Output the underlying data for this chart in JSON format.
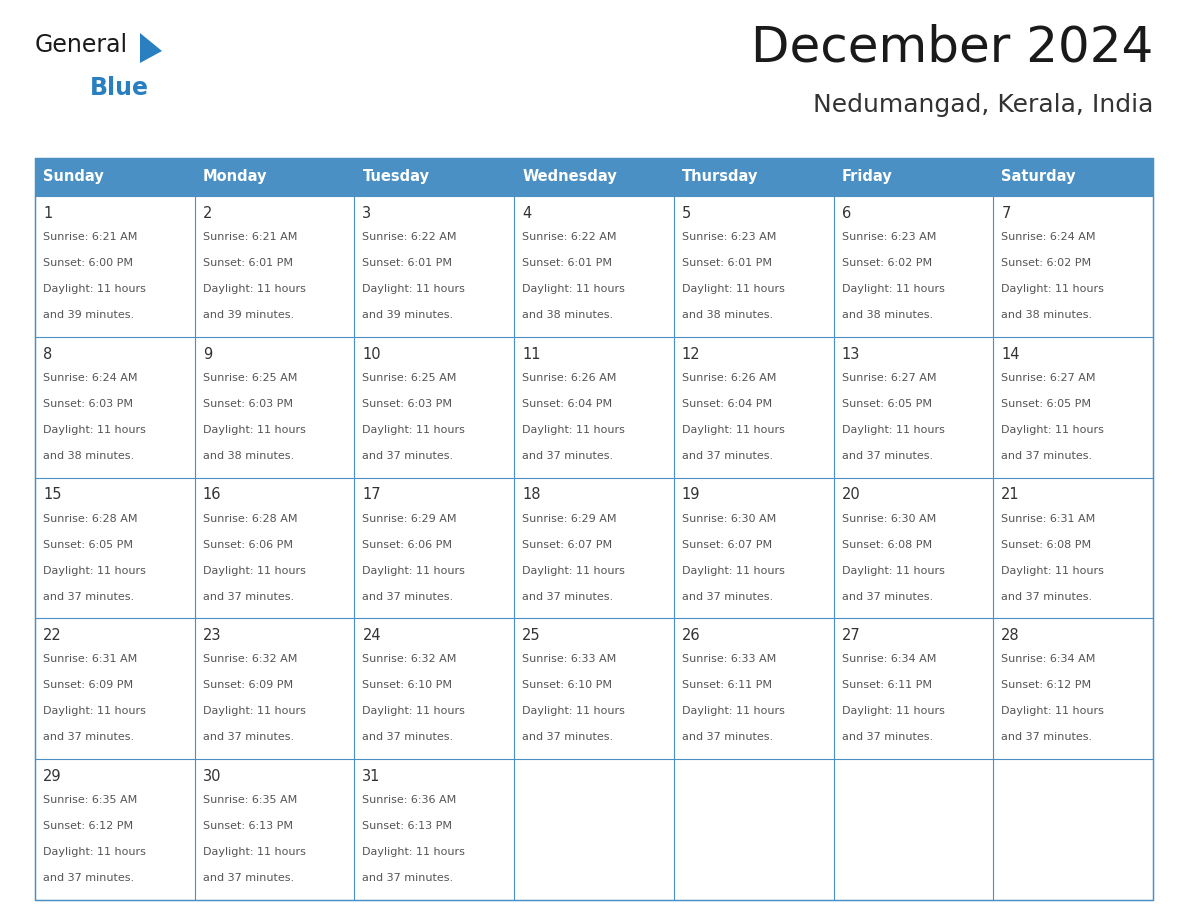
{
  "title": "December 2024",
  "subtitle": "Nedumangad, Kerala, India",
  "days_of_week": [
    "Sunday",
    "Monday",
    "Tuesday",
    "Wednesday",
    "Thursday",
    "Friday",
    "Saturday"
  ],
  "header_bg": "#4a90c4",
  "header_text": "#ffffff",
  "cell_bg": "#ffffff",
  "cell_border": "#4a90c4",
  "day_num_color": "#333333",
  "content_color": "#555555",
  "title_color": "#1a1a1a",
  "subtitle_color": "#333333",
  "logo_general_color": "#1a1a1a",
  "logo_blue_color": "#2a7fc1",
  "calendar_data": [
    {
      "day": 1,
      "col": 0,
      "row": 0,
      "sunrise": "6:21 AM",
      "sunset": "6:00 PM",
      "daylight_suffix": "39 minutes."
    },
    {
      "day": 2,
      "col": 1,
      "row": 0,
      "sunrise": "6:21 AM",
      "sunset": "6:01 PM",
      "daylight_suffix": "39 minutes."
    },
    {
      "day": 3,
      "col": 2,
      "row": 0,
      "sunrise": "6:22 AM",
      "sunset": "6:01 PM",
      "daylight_suffix": "39 minutes."
    },
    {
      "day": 4,
      "col": 3,
      "row": 0,
      "sunrise": "6:22 AM",
      "sunset": "6:01 PM",
      "daylight_suffix": "38 minutes."
    },
    {
      "day": 5,
      "col": 4,
      "row": 0,
      "sunrise": "6:23 AM",
      "sunset": "6:01 PM",
      "daylight_suffix": "38 minutes."
    },
    {
      "day": 6,
      "col": 5,
      "row": 0,
      "sunrise": "6:23 AM",
      "sunset": "6:02 PM",
      "daylight_suffix": "38 minutes."
    },
    {
      "day": 7,
      "col": 6,
      "row": 0,
      "sunrise": "6:24 AM",
      "sunset": "6:02 PM",
      "daylight_suffix": "38 minutes."
    },
    {
      "day": 8,
      "col": 0,
      "row": 1,
      "sunrise": "6:24 AM",
      "sunset": "6:03 PM",
      "daylight_suffix": "38 minutes."
    },
    {
      "day": 9,
      "col": 1,
      "row": 1,
      "sunrise": "6:25 AM",
      "sunset": "6:03 PM",
      "daylight_suffix": "38 minutes."
    },
    {
      "day": 10,
      "col": 2,
      "row": 1,
      "sunrise": "6:25 AM",
      "sunset": "6:03 PM",
      "daylight_suffix": "37 minutes."
    },
    {
      "day": 11,
      "col": 3,
      "row": 1,
      "sunrise": "6:26 AM",
      "sunset": "6:04 PM",
      "daylight_suffix": "37 minutes."
    },
    {
      "day": 12,
      "col": 4,
      "row": 1,
      "sunrise": "6:26 AM",
      "sunset": "6:04 PM",
      "daylight_suffix": "37 minutes."
    },
    {
      "day": 13,
      "col": 5,
      "row": 1,
      "sunrise": "6:27 AM",
      "sunset": "6:05 PM",
      "daylight_suffix": "37 minutes."
    },
    {
      "day": 14,
      "col": 6,
      "row": 1,
      "sunrise": "6:27 AM",
      "sunset": "6:05 PM",
      "daylight_suffix": "37 minutes."
    },
    {
      "day": 15,
      "col": 0,
      "row": 2,
      "sunrise": "6:28 AM",
      "sunset": "6:05 PM",
      "daylight_suffix": "37 minutes."
    },
    {
      "day": 16,
      "col": 1,
      "row": 2,
      "sunrise": "6:28 AM",
      "sunset": "6:06 PM",
      "daylight_suffix": "37 minutes."
    },
    {
      "day": 17,
      "col": 2,
      "row": 2,
      "sunrise": "6:29 AM",
      "sunset": "6:06 PM",
      "daylight_suffix": "37 minutes."
    },
    {
      "day": 18,
      "col": 3,
      "row": 2,
      "sunrise": "6:29 AM",
      "sunset": "6:07 PM",
      "daylight_suffix": "37 minutes."
    },
    {
      "day": 19,
      "col": 4,
      "row": 2,
      "sunrise": "6:30 AM",
      "sunset": "6:07 PM",
      "daylight_suffix": "37 minutes."
    },
    {
      "day": 20,
      "col": 5,
      "row": 2,
      "sunrise": "6:30 AM",
      "sunset": "6:08 PM",
      "daylight_suffix": "37 minutes."
    },
    {
      "day": 21,
      "col": 6,
      "row": 2,
      "sunrise": "6:31 AM",
      "sunset": "6:08 PM",
      "daylight_suffix": "37 minutes."
    },
    {
      "day": 22,
      "col": 0,
      "row": 3,
      "sunrise": "6:31 AM",
      "sunset": "6:09 PM",
      "daylight_suffix": "37 minutes."
    },
    {
      "day": 23,
      "col": 1,
      "row": 3,
      "sunrise": "6:32 AM",
      "sunset": "6:09 PM",
      "daylight_suffix": "37 minutes."
    },
    {
      "day": 24,
      "col": 2,
      "row": 3,
      "sunrise": "6:32 AM",
      "sunset": "6:10 PM",
      "daylight_suffix": "37 minutes."
    },
    {
      "day": 25,
      "col": 3,
      "row": 3,
      "sunrise": "6:33 AM",
      "sunset": "6:10 PM",
      "daylight_suffix": "37 minutes."
    },
    {
      "day": 26,
      "col": 4,
      "row": 3,
      "sunrise": "6:33 AM",
      "sunset": "6:11 PM",
      "daylight_suffix": "37 minutes."
    },
    {
      "day": 27,
      "col": 5,
      "row": 3,
      "sunrise": "6:34 AM",
      "sunset": "6:11 PM",
      "daylight_suffix": "37 minutes."
    },
    {
      "day": 28,
      "col": 6,
      "row": 3,
      "sunrise": "6:34 AM",
      "sunset": "6:12 PM",
      "daylight_suffix": "37 minutes."
    },
    {
      "day": 29,
      "col": 0,
      "row": 4,
      "sunrise": "6:35 AM",
      "sunset": "6:12 PM",
      "daylight_suffix": "37 minutes."
    },
    {
      "day": 30,
      "col": 1,
      "row": 4,
      "sunrise": "6:35 AM",
      "sunset": "6:13 PM",
      "daylight_suffix": "37 minutes."
    },
    {
      "day": 31,
      "col": 2,
      "row": 4,
      "sunrise": "6:36 AM",
      "sunset": "6:13 PM",
      "daylight_suffix": "37 minutes."
    }
  ],
  "num_rows": 5,
  "num_cols": 7
}
